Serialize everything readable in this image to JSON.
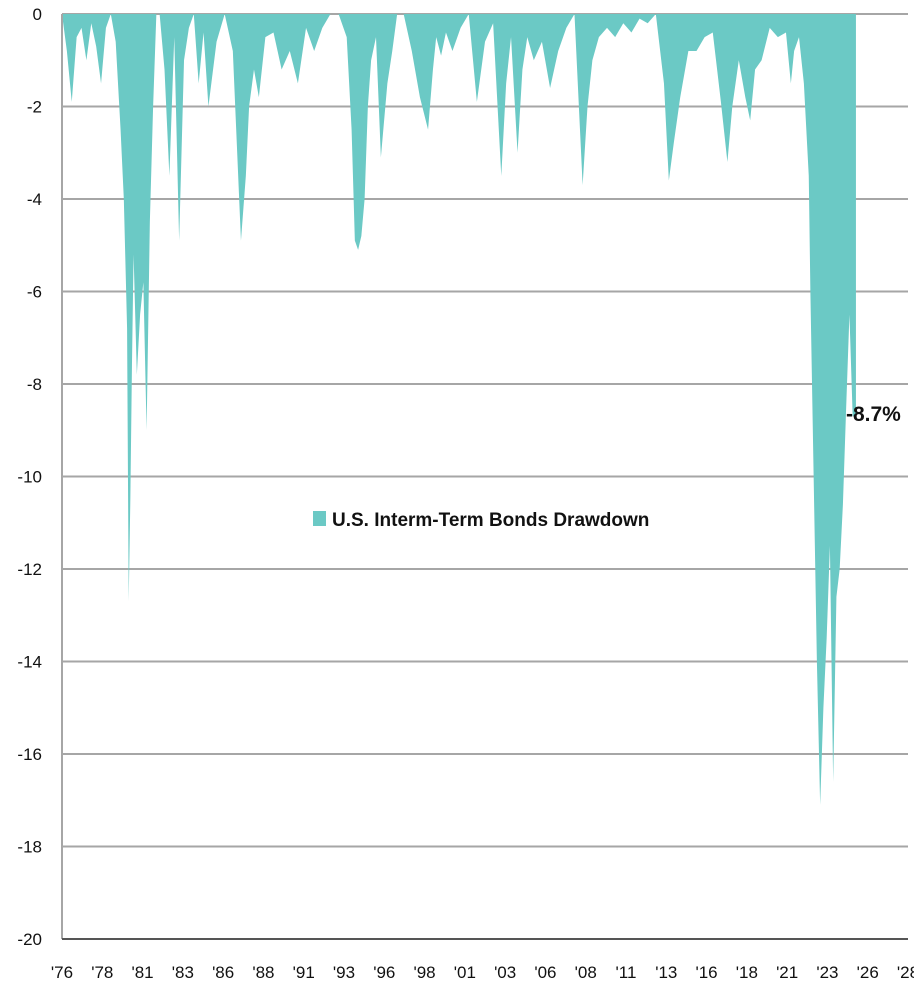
{
  "chart_data": {
    "type": "area",
    "title": "",
    "xlabel": "",
    "ylabel": "",
    "xlim": [
      1976,
      2028
    ],
    "ylim": [
      -20,
      0
    ],
    "grid": true,
    "x_tick_labels": [
      "'76",
      "'78",
      "'81",
      "'83",
      "'86",
      "'88",
      "'91",
      "'93",
      "'96",
      "'98",
      "'01",
      "'03",
      "'06",
      "'08",
      "'11",
      "'13",
      "'16",
      "'18",
      "'21",
      "'23",
      "'26",
      "'28"
    ],
    "y_ticks": [
      0,
      -2,
      -4,
      -6,
      -8,
      -10,
      -12,
      -14,
      -16,
      -18,
      -20
    ],
    "y_tick_labels": [
      "0",
      "-2",
      "-4",
      "-6",
      "-8",
      "-10",
      "-12",
      "-14",
      "-16",
      "-18",
      "-20"
    ],
    "legend": {
      "position": "center",
      "entries": [
        {
          "name": "U.S. Interm-Term Bonds Drawdown",
          "color": "#6bc9c5"
        }
      ]
    },
    "annotations": [
      {
        "text": "-8.7%",
        "x": 2024.8,
        "y": -8.7
      }
    ],
    "series": [
      {
        "name": "U.S. Interm-Term Bonds Drawdown",
        "color": "#6bc9c5",
        "x": [
          1976.0,
          1976.3,
          1976.6,
          1976.9,
          1977.2,
          1977.5,
          1977.8,
          1978.1,
          1978.4,
          1978.7,
          1979.0,
          1979.3,
          1979.6,
          1979.8,
          1980.0,
          1980.1,
          1980.2,
          1980.3,
          1980.4,
          1980.6,
          1980.8,
          1981.0,
          1981.2,
          1981.4,
          1981.6,
          1981.8,
          1982.0,
          1982.3,
          1982.6,
          1982.9,
          1983.2,
          1983.5,
          1983.8,
          1984.1,
          1984.4,
          1984.7,
          1985.0,
          1985.5,
          1986.0,
          1986.5,
          1987.0,
          1987.3,
          1987.5,
          1987.8,
          1988.1,
          1988.5,
          1989.0,
          1989.5,
          1990.0,
          1990.5,
          1991.0,
          1991.5,
          1992.0,
          1992.5,
          1993.0,
          1993.5,
          1993.8,
          1994.0,
          1994.2,
          1994.4,
          1994.6,
          1994.8,
          1995.0,
          1995.3,
          1995.6,
          1996.0,
          1996.3,
          1996.6,
          1997.0,
          1997.5,
          1998.0,
          1998.5,
          1998.8,
          1999.0,
          1999.3,
          1999.6,
          2000.0,
          2000.5,
          2001.0,
          2001.5,
          2002.0,
          2002.5,
          2003.0,
          2003.3,
          2003.6,
          2004.0,
          2004.3,
          2004.6,
          2005.0,
          2005.5,
          2006.0,
          2006.5,
          2007.0,
          2007.5,
          2008.0,
          2008.3,
          2008.6,
          2009.0,
          2009.5,
          2010.0,
          2010.5,
          2011.0,
          2011.5,
          2012.0,
          2012.5,
          2013.0,
          2013.3,
          2013.6,
          2014.0,
          2014.5,
          2015.0,
          2015.5,
          2016.0,
          2016.5,
          2016.9,
          2017.2,
          2017.6,
          2018.0,
          2018.3,
          2018.6,
          2019.0,
          2019.5,
          2020.0,
          2020.5,
          2020.8,
          2021.0,
          2021.3,
          2021.6,
          2021.9,
          2022.0,
          2022.2,
          2022.4,
          2022.6,
          2022.8,
          2023.0,
          2023.2,
          2023.4,
          2023.6,
          2023.8,
          2024.0,
          2024.2,
          2024.4,
          2024.6,
          2024.8
        ],
        "y": [
          0,
          -0.8,
          -1.9,
          -0.5,
          -0.3,
          -1.0,
          -0.2,
          -0.7,
          -1.5,
          -0.3,
          0,
          -0.6,
          -2.5,
          -4.0,
          -6.8,
          -12.7,
          -10.5,
          -7.6,
          -5.2,
          -7.8,
          -6.5,
          -5.8,
          -9.0,
          -4.5,
          -2.0,
          0,
          0,
          -1.2,
          -3.5,
          -0.5,
          -4.9,
          -1.0,
          -0.3,
          0,
          -1.5,
          -0.4,
          -2.0,
          -0.6,
          0,
          -0.8,
          -4.9,
          -3.5,
          -2.0,
          -1.2,
          -1.8,
          -0.5,
          -0.4,
          -1.2,
          -0.8,
          -1.5,
          -0.3,
          -0.8,
          -0.3,
          0,
          0,
          -0.5,
          -2.5,
          -4.9,
          -5.1,
          -4.8,
          -4.0,
          -2.0,
          -1.0,
          -0.5,
          -3.1,
          -1.5,
          -0.8,
          0,
          0,
          -0.8,
          -1.8,
          -2.5,
          -1.2,
          -0.5,
          -0.9,
          -0.4,
          -0.8,
          -0.3,
          0,
          -1.9,
          -0.6,
          -0.2,
          -3.5,
          -1.5,
          -0.5,
          -3.0,
          -1.2,
          -0.5,
          -1.0,
          -0.6,
          -1.6,
          -0.8,
          -0.3,
          0,
          -3.7,
          -2.0,
          -1.0,
          -0.5,
          -0.3,
          -0.5,
          -0.2,
          -0.4,
          -0.1,
          -0.2,
          0,
          -1.5,
          -3.6,
          -2.8,
          -1.8,
          -0.8,
          -0.8,
          -0.5,
          -0.4,
          -1.9,
          -3.2,
          -2.0,
          -1.0,
          -1.8,
          -2.3,
          -1.2,
          -1.0,
          -0.3,
          -0.5,
          -0.4,
          -1.5,
          -0.8,
          -0.5,
          -1.5,
          -3.5,
          -6.0,
          -10.0,
          -14.0,
          -17.1,
          -15.0,
          -13.5,
          -11.5,
          -16.6,
          -12.6,
          -12.0,
          -10.6,
          -8.5,
          -6.5,
          -8.7,
          -8.7
        ]
      }
    ]
  }
}
